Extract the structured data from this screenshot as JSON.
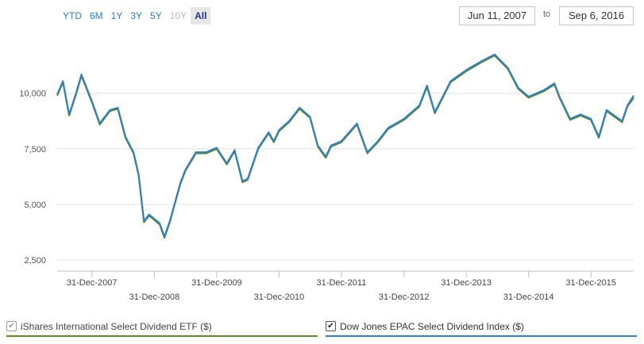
{
  "range_buttons": [
    {
      "label": "YTD",
      "state": "enabled"
    },
    {
      "label": "6M",
      "state": "enabled"
    },
    {
      "label": "1Y",
      "state": "enabled"
    },
    {
      "label": "3Y",
      "state": "enabled"
    },
    {
      "label": "5Y",
      "state": "enabled"
    },
    {
      "label": "10Y",
      "state": "disabled"
    },
    {
      "label": "All",
      "state": "active"
    }
  ],
  "date_range": {
    "from": "Jun 11, 2007",
    "to_label": "to",
    "to": "Sep 6, 2016"
  },
  "legend": [
    {
      "label": "iShares International Select Dividend ETF ($)",
      "checked": true,
      "enabled": false,
      "color": "#5b8c1d"
    },
    {
      "label": "Dow Jones EPAC Select Dividend Index ($)",
      "checked": true,
      "enabled": true,
      "color": "#2f7fcf"
    }
  ],
  "chart_data": {
    "type": "line",
    "title": "",
    "xlabel": "",
    "ylabel": "",
    "ylim": [
      2000,
      12700
    ],
    "yticks": [
      2500,
      5000,
      7500,
      10000
    ],
    "ytick_labels": [
      "2,500",
      "5,000",
      "7,500",
      "10,000"
    ],
    "xlim": [
      "2007-06-11",
      "2016-09-06"
    ],
    "xticks": [
      "2007-12-31",
      "2008-12-31",
      "2009-12-31",
      "2010-12-31",
      "2011-12-31",
      "2012-12-31",
      "2013-12-31",
      "2014-12-31",
      "2015-12-31"
    ],
    "xtick_labels": [
      "31-Dec-2007",
      "31-Dec-2008",
      "31-Dec-2009",
      "31-Dec-2010",
      "31-Dec-2011",
      "31-Dec-2012",
      "31-Dec-2013",
      "31-Dec-2014",
      "31-Dec-2015"
    ],
    "grid": "horizontal",
    "legend_position": "bottom",
    "series": [
      {
        "name": "iShares International Select Dividend ETF ($)",
        "color": "#5b8c1d",
        "points": [
          [
            "2007-06-11",
            9900
          ],
          [
            "2007-07-15",
            10500
          ],
          [
            "2007-08-20",
            9000
          ],
          [
            "2007-10-01",
            10000
          ],
          [
            "2007-10-31",
            10800
          ],
          [
            "2007-12-31",
            9600
          ],
          [
            "2008-02-15",
            8600
          ],
          [
            "2008-04-15",
            9200
          ],
          [
            "2008-05-31",
            9300
          ],
          [
            "2008-07-15",
            8000
          ],
          [
            "2008-08-31",
            7300
          ],
          [
            "2008-09-30",
            6300
          ],
          [
            "2008-10-31",
            4200
          ],
          [
            "2008-11-30",
            4500
          ],
          [
            "2008-12-31",
            4300
          ],
          [
            "2009-01-31",
            4100
          ],
          [
            "2009-02-28",
            3500
          ],
          [
            "2009-03-31",
            4200
          ],
          [
            "2009-05-31",
            5900
          ],
          [
            "2009-06-30",
            6500
          ],
          [
            "2009-08-31",
            7300
          ],
          [
            "2009-10-31",
            7300
          ],
          [
            "2009-11-30",
            7400
          ],
          [
            "2009-12-31",
            7500
          ],
          [
            "2010-02-28",
            6800
          ],
          [
            "2010-04-15",
            7400
          ],
          [
            "2010-05-31",
            6000
          ],
          [
            "2010-06-30",
            6100
          ],
          [
            "2010-08-31",
            7500
          ],
          [
            "2010-10-31",
            8200
          ],
          [
            "2010-11-30",
            7800
          ],
          [
            "2010-12-31",
            8300
          ],
          [
            "2011-02-28",
            8700
          ],
          [
            "2011-04-30",
            9300
          ],
          [
            "2011-06-30",
            8900
          ],
          [
            "2011-08-15",
            7600
          ],
          [
            "2011-09-30",
            7100
          ],
          [
            "2011-10-31",
            7600
          ],
          [
            "2011-12-31",
            7800
          ],
          [
            "2012-03-31",
            8600
          ],
          [
            "2012-05-31",
            7300
          ],
          [
            "2012-07-31",
            7800
          ],
          [
            "2012-09-30",
            8400
          ],
          [
            "2012-12-31",
            8800
          ],
          [
            "2013-03-31",
            9400
          ],
          [
            "2013-05-15",
            10300
          ],
          [
            "2013-06-30",
            9100
          ],
          [
            "2013-09-30",
            10500
          ],
          [
            "2013-12-31",
            11000
          ],
          [
            "2014-03-31",
            11400
          ],
          [
            "2014-06-15",
            11700
          ],
          [
            "2014-08-31",
            11100
          ],
          [
            "2014-10-31",
            10200
          ],
          [
            "2014-12-31",
            9800
          ],
          [
            "2015-03-31",
            10100
          ],
          [
            "2015-05-31",
            10400
          ],
          [
            "2015-06-30",
            9800
          ],
          [
            "2015-08-31",
            8800
          ],
          [
            "2015-10-31",
            9000
          ],
          [
            "2015-12-31",
            8800
          ],
          [
            "2016-02-15",
            8000
          ],
          [
            "2016-03-31",
            9200
          ],
          [
            "2016-06-30",
            8700
          ],
          [
            "2016-07-31",
            9400
          ],
          [
            "2016-09-06",
            9800
          ]
        ]
      },
      {
        "name": "Dow Jones EPAC Select Dividend Index ($)",
        "color": "#2f7fcf",
        "points": [
          [
            "2007-06-11",
            9950
          ],
          [
            "2007-07-15",
            10550
          ],
          [
            "2007-08-20",
            9050
          ],
          [
            "2007-10-01",
            10050
          ],
          [
            "2007-10-31",
            10850
          ],
          [
            "2007-12-31",
            9650
          ],
          [
            "2008-02-15",
            8650
          ],
          [
            "2008-04-15",
            9250
          ],
          [
            "2008-05-31",
            9350
          ],
          [
            "2008-07-15",
            8050
          ],
          [
            "2008-08-31",
            7350
          ],
          [
            "2008-09-30",
            6350
          ],
          [
            "2008-10-31",
            4250
          ],
          [
            "2008-11-30",
            4550
          ],
          [
            "2008-12-31",
            4350
          ],
          [
            "2009-01-31",
            4150
          ],
          [
            "2009-02-28",
            3550
          ],
          [
            "2009-03-31",
            4250
          ],
          [
            "2009-05-31",
            5950
          ],
          [
            "2009-06-30",
            6550
          ],
          [
            "2009-08-31",
            7350
          ],
          [
            "2009-10-31",
            7350
          ],
          [
            "2009-11-30",
            7450
          ],
          [
            "2009-12-31",
            7550
          ],
          [
            "2010-02-28",
            6850
          ],
          [
            "2010-04-15",
            7450
          ],
          [
            "2010-05-31",
            6050
          ],
          [
            "2010-06-30",
            6150
          ],
          [
            "2010-08-31",
            7550
          ],
          [
            "2010-10-31",
            8250
          ],
          [
            "2010-11-30",
            7850
          ],
          [
            "2010-12-31",
            8350
          ],
          [
            "2011-02-28",
            8750
          ],
          [
            "2011-04-30",
            9350
          ],
          [
            "2011-06-30",
            8950
          ],
          [
            "2011-08-15",
            7650
          ],
          [
            "2011-09-30",
            7150
          ],
          [
            "2011-10-31",
            7650
          ],
          [
            "2011-12-31",
            7850
          ],
          [
            "2012-03-31",
            8650
          ],
          [
            "2012-05-31",
            7350
          ],
          [
            "2012-07-31",
            7850
          ],
          [
            "2012-09-30",
            8450
          ],
          [
            "2012-12-31",
            8850
          ],
          [
            "2013-03-31",
            9450
          ],
          [
            "2013-05-15",
            10350
          ],
          [
            "2013-06-30",
            9150
          ],
          [
            "2013-09-30",
            10550
          ],
          [
            "2013-12-31",
            11050
          ],
          [
            "2014-03-31",
            11450
          ],
          [
            "2014-06-15",
            11750
          ],
          [
            "2014-08-31",
            11150
          ],
          [
            "2014-10-31",
            10250
          ],
          [
            "2014-12-31",
            9850
          ],
          [
            "2015-03-31",
            10150
          ],
          [
            "2015-05-31",
            10450
          ],
          [
            "2015-06-30",
            9850
          ],
          [
            "2015-08-31",
            8850
          ],
          [
            "2015-10-31",
            9050
          ],
          [
            "2015-12-31",
            8850
          ],
          [
            "2016-02-15",
            8050
          ],
          [
            "2016-03-31",
            9250
          ],
          [
            "2016-06-30",
            8750
          ],
          [
            "2016-07-31",
            9450
          ],
          [
            "2016-09-06",
            9900
          ]
        ]
      }
    ]
  }
}
